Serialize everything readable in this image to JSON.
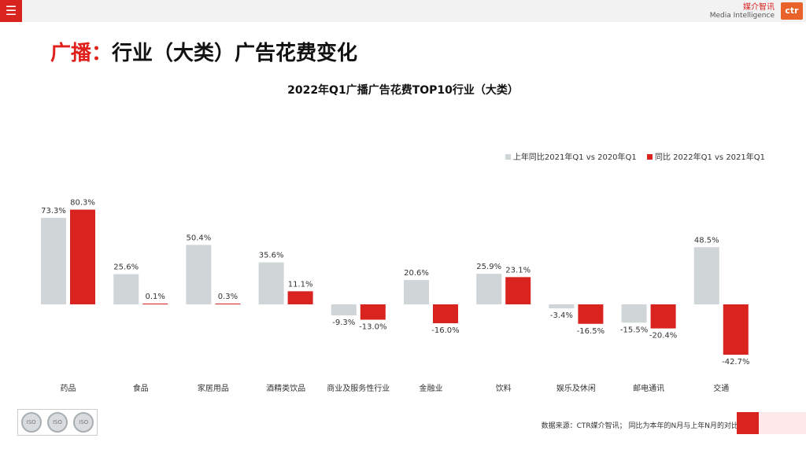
{
  "header": {
    "menu_icon": "menu-icon",
    "brand_cn": "媒介智讯",
    "brand_en": "Media Intelligence",
    "brand_logo": "ctr"
  },
  "page_title": {
    "highlight": "广播：",
    "text": "行业（大类）广告花费变化"
  },
  "colors": {
    "prev": "#d0d5d8",
    "curr": "#d8231f",
    "accent": "#e0201b"
  },
  "chart_data": {
    "type": "bar",
    "title": "2022年Q1广播广告花费TOP10行业（大类）",
    "categories": [
      "药品",
      "食品",
      "家居用品",
      "酒精类饮品",
      "商业及服务性行业",
      "金融业",
      "饮料",
      "娱乐及休闲",
      "邮电通讯",
      "交通"
    ],
    "series": [
      {
        "name": "上年同比2021年Q1 vs 2020年Q1",
        "values": [
          73.3,
          25.6,
          50.4,
          35.6,
          -9.3,
          20.6,
          25.9,
          -3.4,
          -15.5,
          48.5
        ],
        "labels": [
          "73.3%",
          "25.6%",
          "50.4%",
          "35.6%",
          "-9.3%",
          "20.6%",
          "25.9%",
          "-3.4%",
          "-15.5%",
          "48.5%"
        ]
      },
      {
        "name": "同比 2022年Q1 vs 2021年Q1",
        "values": [
          80.3,
          0.1,
          0.3,
          11.1,
          -13.0,
          -16.0,
          23.1,
          -16.5,
          -20.4,
          -42.7
        ],
        "labels": [
          "80.3%",
          "0.1%",
          "0.3%",
          "11.1%",
          "-13.0%",
          "-16.0%",
          "23.1%",
          "-16.5%",
          "-20.4%",
          "-42.7%"
        ]
      }
    ],
    "ylim": [
      -42.7,
      80.3
    ],
    "legend_position": "top-right"
  },
  "footer": {
    "source": "数据来源：CTR媒介智讯；  同比为本年的N月与上年N月的对比",
    "cert_labels": [
      "ISO",
      "ISO",
      "ISO"
    ]
  }
}
